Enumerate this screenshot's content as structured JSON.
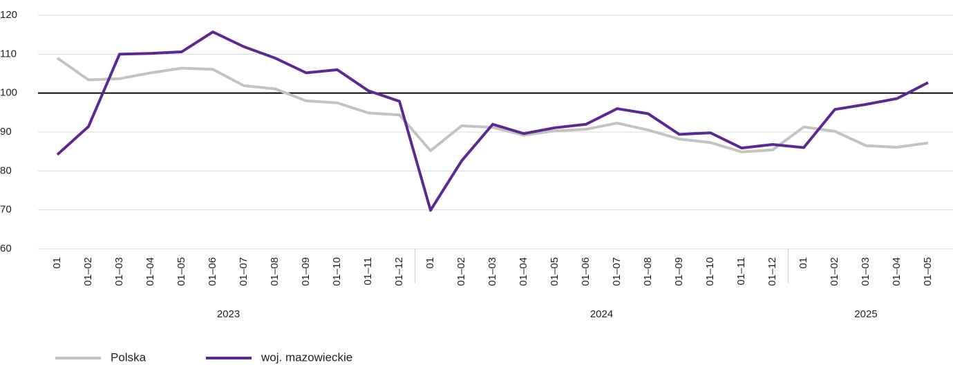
{
  "chart_data": {
    "type": "line",
    "category_groups": [
      {
        "label": "2023",
        "categories": [
          "01",
          "01–02",
          "01–03",
          "01–04",
          "01–05",
          "01–06",
          "01–07",
          "01–08",
          "01–09",
          "01–10",
          "01–11",
          "01–12"
        ]
      },
      {
        "label": "2024",
        "categories": [
          "01",
          "01–02",
          "01–03",
          "01–04",
          "01–05",
          "01–06",
          "01–07",
          "01–08",
          "01–09",
          "01–10",
          "01–11",
          "01–12"
        ]
      },
      {
        "label": "2025",
        "categories": [
          "01",
          "01–02",
          "01–03",
          "01–04",
          "01–05"
        ]
      }
    ],
    "series": [
      {
        "name": "Polska",
        "color": "#c3c3c3",
        "values": [
          109,
          103.4,
          103.7,
          105.2,
          106.4,
          106.1,
          101.9,
          101.1,
          98,
          97.5,
          94.9,
          94.4,
          85.2,
          91.6,
          91.2,
          89.2,
          90.3,
          90.7,
          92.3,
          90.5,
          88.2,
          87.3,
          84.9,
          85.4,
          91.3,
          90.2,
          86.5,
          86.1,
          87.2
        ]
      },
      {
        "name": "woj. mazowieckie",
        "color": "#5a2a92",
        "values": [
          84.2,
          91.4,
          110,
          110.2,
          110.6,
          115.7,
          111.9,
          109,
          105.2,
          106,
          100.6,
          97.9,
          69.9,
          82.6,
          92,
          89.6,
          91.1,
          92,
          96,
          94.7,
          89.4,
          89.8,
          85.9,
          86.8,
          86,
          95.8,
          97.1,
          98.6,
          102.7
        ]
      }
    ],
    "ylim": [
      60,
      120
    ],
    "yticks": [
      60,
      70,
      80,
      90,
      100,
      110,
      120
    ],
    "grid": true,
    "reference_line": 100
  }
}
